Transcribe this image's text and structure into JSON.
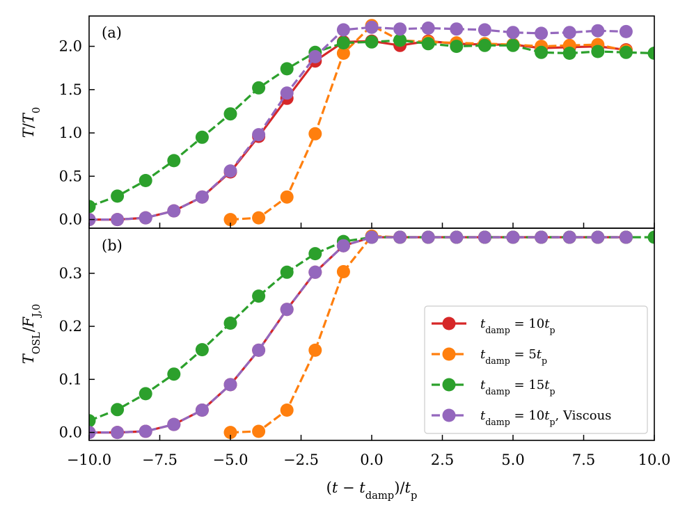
{
  "chart_data": {
    "type": "line",
    "x_axis": {
      "label_html": "(t − t<sub>damp</sub>)/t<sub>p</sub>",
      "label_parts": [
        "(",
        "t",
        " − ",
        "t",
        "damp",
        ")/",
        "t",
        "p"
      ],
      "range": [
        -10,
        10
      ],
      "ticks": [
        -10,
        -7.5,
        -5,
        -2.5,
        0,
        2.5,
        5,
        7.5,
        10
      ],
      "tick_labels": [
        "−10.0",
        "−7.5",
        "−5.0",
        "−2.5",
        "0.0",
        "2.5",
        "5.0",
        "7.5",
        "10.0"
      ]
    },
    "panels": [
      {
        "id": "a",
        "panel_label": "(a)",
        "ylabel_parts": [
          "T",
          "/",
          "T",
          "0"
        ],
        "ylim": [
          -0.1,
          2.35
        ],
        "yticks": [
          0,
          0.5,
          1.0,
          1.5,
          2.0
        ],
        "ytick_labels": [
          "0.0",
          "0.5",
          "1.0",
          "1.5",
          "2.0"
        ],
        "series": [
          {
            "name": "t_damp = 10 t_p",
            "color": "#d62728",
            "dash": "solid",
            "x": [
              -10,
              -9,
              -8,
              -7,
              -6,
              -5,
              -4,
              -3,
              -2,
              -1,
              0,
              1,
              2,
              3,
              4,
              5,
              6,
              7,
              8,
              9
            ],
            "y": [
              0,
              0,
              0.02,
              0.1,
              0.26,
              0.55,
              0.96,
              1.4,
              1.83,
              2.05,
              2.06,
              2.01,
              2.06,
              2.03,
              2.02,
              2.02,
              1.98,
              1.99,
              2.0,
              1.96
            ]
          },
          {
            "name": "t_damp = 5 t_p",
            "color": "#ff7f0e",
            "dash": "dashed",
            "x": [
              -5,
              -4,
              -3,
              -2,
              -1,
              0,
              1,
              2,
              3,
              4,
              5,
              6,
              7,
              8,
              9
            ],
            "y": [
              0,
              0.02,
              0.26,
              0.99,
              1.92,
              2.24,
              2.07,
              2.05,
              2.04,
              2.03,
              2.02,
              2.0,
              2.01,
              2.02,
              1.95
            ]
          },
          {
            "name": "t_damp = 15 t_p",
            "color": "#2ca02c",
            "dash": "dashed",
            "x": [
              -10,
              -9,
              -8,
              -7,
              -6,
              -5,
              -4,
              -3,
              -2,
              -1,
              0,
              1,
              2,
              3,
              4,
              5,
              6,
              7,
              8,
              9,
              10
            ],
            "y": [
              0.15,
              0.27,
              0.45,
              0.68,
              0.95,
              1.22,
              1.52,
              1.74,
              1.93,
              2.04,
              2.05,
              2.07,
              2.03,
              2.0,
              2.01,
              2.01,
              1.93,
              1.92,
              1.94,
              1.93,
              1.92
            ]
          },
          {
            "name": "t_damp = 10 t_p, Viscous",
            "color": "#9467bd",
            "dash": "dashed",
            "x": [
              -10,
              -9,
              -8,
              -7,
              -6,
              -5,
              -4,
              -3,
              -2,
              -1,
              0,
              1,
              2,
              3,
              4,
              5,
              6,
              7,
              8,
              9
            ],
            "y": [
              0,
              0,
              0.02,
              0.1,
              0.26,
              0.56,
              0.98,
              1.46,
              1.88,
              2.19,
              2.22,
              2.2,
              2.21,
              2.2,
              2.19,
              2.16,
              2.15,
              2.16,
              2.18,
              2.17
            ]
          }
        ]
      },
      {
        "id": "b",
        "panel_label": "(b)",
        "ylabel_parts": [
          "T",
          "OSL",
          "/",
          "F",
          "J,0"
        ],
        "ylim": [
          -0.015,
          0.385
        ],
        "yticks": [
          0,
          0.1,
          0.2,
          0.3
        ],
        "ytick_labels": [
          "0.0",
          "0.1",
          "0.2",
          "0.3"
        ],
        "series": [
          {
            "name": "t_damp = 10 t_p",
            "color": "#d62728",
            "dash": "solid",
            "x": [
              -10,
              -9,
              -8,
              -7,
              -6,
              -5,
              -4,
              -3,
              -2,
              -1,
              0,
              1,
              2,
              3,
              4,
              5,
              6,
              7,
              8,
              9
            ],
            "y": [
              0,
              0,
              0.002,
              0.015,
              0.042,
              0.09,
              0.155,
              0.232,
              0.302,
              0.352,
              0.368,
              0.368,
              0.368,
              0.368,
              0.368,
              0.368,
              0.368,
              0.368,
              0.368,
              0.368
            ]
          },
          {
            "name": "t_damp = 5 t_p",
            "color": "#ff7f0e",
            "dash": "dashed",
            "x": [
              -5,
              -4,
              -3,
              -2,
              -1,
              0,
              1,
              2,
              3,
              4,
              5,
              6,
              7,
              8,
              9
            ],
            "y": [
              0,
              0.002,
              0.042,
              0.155,
              0.303,
              0.37,
              0.368,
              0.368,
              0.368,
              0.368,
              0.368,
              0.368,
              0.368,
              0.368,
              0.368
            ]
          },
          {
            "name": "t_damp = 15 t_p",
            "color": "#2ca02c",
            "dash": "dashed",
            "x": [
              -10,
              -9,
              -8,
              -7,
              -6,
              -5,
              -4,
              -3,
              -2,
              -1,
              0,
              1,
              2,
              3,
              4,
              5,
              6,
              7,
              8,
              9,
              10
            ],
            "y": [
              0.022,
              0.043,
              0.073,
              0.11,
              0.156,
              0.206,
              0.257,
              0.302,
              0.337,
              0.36,
              0.368,
              0.368,
              0.368,
              0.368,
              0.368,
              0.368,
              0.368,
              0.368,
              0.368,
              0.368,
              0.368
            ]
          },
          {
            "name": "t_damp = 10 t_p, Viscous",
            "color": "#9467bd",
            "dash": "dashed",
            "x": [
              -10,
              -9,
              -8,
              -7,
              -6,
              -5,
              -4,
              -3,
              -2,
              -1,
              0,
              1,
              2,
              3,
              4,
              5,
              6,
              7,
              8,
              9
            ],
            "y": [
              0,
              0,
              0.002,
              0.015,
              0.042,
              0.09,
              0.155,
              0.232,
              0.302,
              0.352,
              0.368,
              0.368,
              0.368,
              0.368,
              0.368,
              0.368,
              0.368,
              0.368,
              0.368,
              0.368
            ]
          }
        ]
      }
    ],
    "legend": {
      "placement": "lower-right of panel (b)",
      "entries": [
        {
          "color": "#d62728",
          "dash": "solid",
          "parts": [
            "t",
            "damp",
            " = 10",
            "t",
            "p",
            ""
          ]
        },
        {
          "color": "#ff7f0e",
          "dash": "dashed",
          "parts": [
            "t",
            "damp",
            " = 5",
            "t",
            "p",
            ""
          ]
        },
        {
          "color": "#2ca02c",
          "dash": "dashed",
          "parts": [
            "t",
            "damp",
            " = 15",
            "t",
            "p",
            ""
          ]
        },
        {
          "color": "#9467bd",
          "dash": "dashed",
          "parts": [
            "t",
            "damp",
            " = 10",
            "t",
            "p",
            ", Viscous"
          ]
        }
      ]
    }
  }
}
